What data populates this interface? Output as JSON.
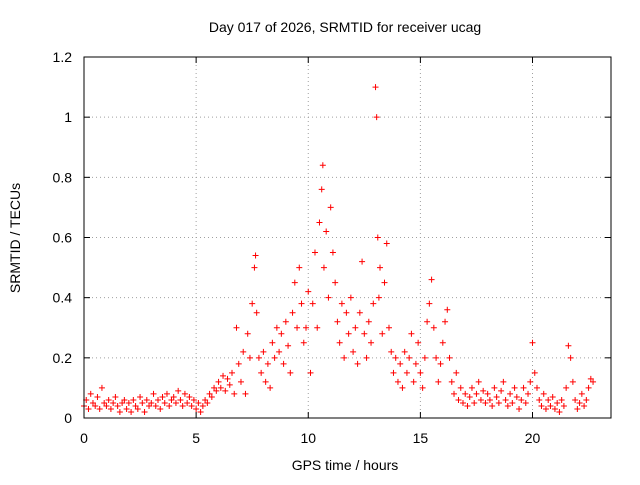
{
  "chart_data": {
    "type": "scatter",
    "title": "Day 017 of 2026, SRMTID for receiver ucag",
    "xlabel": "GPS time / hours",
    "ylabel": "SRMTID / TECUs",
    "xlim": [
      0,
      23.5
    ],
    "ylim": [
      0,
      1.2
    ],
    "xticks": [
      0,
      5,
      10,
      15,
      20
    ],
    "yticks": [
      0,
      0.2,
      0.4,
      0.6,
      0.8,
      1,
      1.2
    ],
    "xtick_labels": [
      "0",
      "5",
      "10",
      "15",
      "20"
    ],
    "ytick_labels": [
      "0",
      "0.2",
      "0.4",
      "0.6",
      "0.8",
      "1",
      "1.2"
    ],
    "grid": true,
    "marker": "+",
    "color": "#ff0000",
    "series": [
      {
        "name": "SRMTID",
        "points": [
          [
            0.0,
            0.04
          ],
          [
            0.1,
            0.06
          ],
          [
            0.2,
            0.03
          ],
          [
            0.3,
            0.08
          ],
          [
            0.4,
            0.05
          ],
          [
            0.5,
            0.04
          ],
          [
            0.6,
            0.07
          ],
          [
            0.7,
            0.03
          ],
          [
            0.8,
            0.1
          ],
          [
            0.9,
            0.05
          ],
          [
            1.0,
            0.04
          ],
          [
            1.1,
            0.06
          ],
          [
            1.2,
            0.03
          ],
          [
            1.3,
            0.05
          ],
          [
            1.4,
            0.07
          ],
          [
            1.5,
            0.04
          ],
          [
            1.6,
            0.02
          ],
          [
            1.7,
            0.05
          ],
          [
            1.8,
            0.06
          ],
          [
            1.9,
            0.03
          ],
          [
            2.0,
            0.05
          ],
          [
            2.1,
            0.02
          ],
          [
            2.2,
            0.06
          ],
          [
            2.3,
            0.04
          ],
          [
            2.4,
            0.03
          ],
          [
            2.5,
            0.07
          ],
          [
            2.6,
            0.05
          ],
          [
            2.7,
            0.02
          ],
          [
            2.8,
            0.06
          ],
          [
            2.9,
            0.04
          ],
          [
            3.0,
            0.05
          ],
          [
            3.1,
            0.08
          ],
          [
            3.2,
            0.04
          ],
          [
            3.3,
            0.06
          ],
          [
            3.4,
            0.03
          ],
          [
            3.5,
            0.07
          ],
          [
            3.6,
            0.05
          ],
          [
            3.7,
            0.08
          ],
          [
            3.8,
            0.04
          ],
          [
            3.9,
            0.06
          ],
          [
            4.0,
            0.07
          ],
          [
            4.1,
            0.05
          ],
          [
            4.2,
            0.09
          ],
          [
            4.3,
            0.06
          ],
          [
            4.4,
            0.04
          ],
          [
            4.5,
            0.08
          ],
          [
            4.6,
            0.05
          ],
          [
            4.7,
            0.07
          ],
          [
            4.8,
            0.04
          ],
          [
            4.9,
            0.06
          ],
          [
            5.0,
            0.03
          ],
          [
            5.1,
            0.05
          ],
          [
            5.2,
            0.02
          ],
          [
            5.3,
            0.04
          ],
          [
            5.4,
            0.06
          ],
          [
            5.5,
            0.05
          ],
          [
            5.6,
            0.08
          ],
          [
            5.7,
            0.07
          ],
          [
            5.8,
            0.1
          ],
          [
            5.9,
            0.09
          ],
          [
            6.0,
            0.12
          ],
          [
            6.1,
            0.1
          ],
          [
            6.2,
            0.14
          ],
          [
            6.3,
            0.09
          ],
          [
            6.4,
            0.13
          ],
          [
            6.5,
            0.11
          ],
          [
            6.6,
            0.15
          ],
          [
            6.7,
            0.08
          ],
          [
            6.8,
            0.3
          ],
          [
            6.9,
            0.18
          ],
          [
            7.0,
            0.12
          ],
          [
            7.1,
            0.22
          ],
          [
            7.2,
            0.08
          ],
          [
            7.3,
            0.28
          ],
          [
            7.4,
            0.2
          ],
          [
            7.5,
            0.38
          ],
          [
            7.6,
            0.5
          ],
          [
            7.65,
            0.54
          ],
          [
            7.7,
            0.35
          ],
          [
            7.8,
            0.2
          ],
          [
            7.9,
            0.15
          ],
          [
            8.0,
            0.22
          ],
          [
            8.1,
            0.12
          ],
          [
            8.2,
            0.18
          ],
          [
            8.3,
            0.1
          ],
          [
            8.4,
            0.25
          ],
          [
            8.5,
            0.2
          ],
          [
            8.6,
            0.3
          ],
          [
            8.7,
            0.22
          ],
          [
            8.8,
            0.28
          ],
          [
            8.9,
            0.18
          ],
          [
            9.0,
            0.32
          ],
          [
            9.1,
            0.24
          ],
          [
            9.2,
            0.15
          ],
          [
            9.3,
            0.35
          ],
          [
            9.4,
            0.45
          ],
          [
            9.5,
            0.3
          ],
          [
            9.6,
            0.5
          ],
          [
            9.7,
            0.38
          ],
          [
            9.8,
            0.25
          ],
          [
            9.9,
            0.3
          ],
          [
            10.0,
            0.42
          ],
          [
            10.1,
            0.15
          ],
          [
            10.2,
            0.38
          ],
          [
            10.3,
            0.55
          ],
          [
            10.4,
            0.3
          ],
          [
            10.5,
            0.65
          ],
          [
            10.6,
            0.76
          ],
          [
            10.65,
            0.84
          ],
          [
            10.7,
            0.5
          ],
          [
            10.8,
            0.62
          ],
          [
            10.9,
            0.4
          ],
          [
            11.0,
            0.7
          ],
          [
            11.1,
            0.55
          ],
          [
            11.2,
            0.45
          ],
          [
            11.3,
            0.32
          ],
          [
            11.4,
            0.25
          ],
          [
            11.5,
            0.38
          ],
          [
            11.6,
            0.2
          ],
          [
            11.7,
            0.35
          ],
          [
            11.8,
            0.28
          ],
          [
            11.9,
            0.4
          ],
          [
            12.0,
            0.22
          ],
          [
            12.1,
            0.3
          ],
          [
            12.2,
            0.18
          ],
          [
            12.3,
            0.35
          ],
          [
            12.4,
            0.52
          ],
          [
            12.5,
            0.28
          ],
          [
            12.6,
            0.2
          ],
          [
            12.7,
            0.32
          ],
          [
            12.8,
            0.25
          ],
          [
            12.9,
            0.38
          ],
          [
            13.0,
            1.1
          ],
          [
            13.05,
            1.0
          ],
          [
            13.1,
            0.6
          ],
          [
            13.15,
            0.4
          ],
          [
            13.2,
            0.5
          ],
          [
            13.3,
            0.28
          ],
          [
            13.4,
            0.45
          ],
          [
            13.5,
            0.58
          ],
          [
            13.6,
            0.3
          ],
          [
            13.7,
            0.22
          ],
          [
            13.8,
            0.15
          ],
          [
            13.9,
            0.2
          ],
          [
            14.0,
            0.12
          ],
          [
            14.1,
            0.18
          ],
          [
            14.2,
            0.1
          ],
          [
            14.3,
            0.22
          ],
          [
            14.4,
            0.15
          ],
          [
            14.5,
            0.2
          ],
          [
            14.6,
            0.28
          ],
          [
            14.7,
            0.12
          ],
          [
            14.8,
            0.18
          ],
          [
            14.9,
            0.25
          ],
          [
            15.0,
            0.15
          ],
          [
            15.1,
            0.1
          ],
          [
            15.2,
            0.2
          ],
          [
            15.3,
            0.32
          ],
          [
            15.4,
            0.38
          ],
          [
            15.5,
            0.46
          ],
          [
            15.6,
            0.3
          ],
          [
            15.7,
            0.2
          ],
          [
            15.8,
            0.12
          ],
          [
            15.9,
            0.18
          ],
          [
            16.0,
            0.25
          ],
          [
            16.1,
            0.32
          ],
          [
            16.2,
            0.36
          ],
          [
            16.3,
            0.2
          ],
          [
            16.4,
            0.12
          ],
          [
            16.5,
            0.08
          ],
          [
            16.6,
            0.15
          ],
          [
            16.7,
            0.06
          ],
          [
            16.8,
            0.1
          ],
          [
            16.9,
            0.05
          ],
          [
            17.0,
            0.08
          ],
          [
            17.1,
            0.04
          ],
          [
            17.2,
            0.07
          ],
          [
            17.3,
            0.1
          ],
          [
            17.4,
            0.05
          ],
          [
            17.5,
            0.08
          ],
          [
            17.6,
            0.12
          ],
          [
            17.7,
            0.06
          ],
          [
            17.8,
            0.09
          ],
          [
            17.9,
            0.05
          ],
          [
            18.0,
            0.08
          ],
          [
            18.1,
            0.06
          ],
          [
            18.2,
            0.04
          ],
          [
            18.3,
            0.1
          ],
          [
            18.4,
            0.07
          ],
          [
            18.5,
            0.05
          ],
          [
            18.6,
            0.09
          ],
          [
            18.7,
            0.12
          ],
          [
            18.8,
            0.06
          ],
          [
            18.9,
            0.04
          ],
          [
            19.0,
            0.08
          ],
          [
            19.1,
            0.05
          ],
          [
            19.2,
            0.1
          ],
          [
            19.3,
            0.07
          ],
          [
            19.4,
            0.03
          ],
          [
            19.5,
            0.06
          ],
          [
            19.6,
            0.1
          ],
          [
            19.7,
            0.05
          ],
          [
            19.8,
            0.08
          ],
          [
            19.9,
            0.12
          ],
          [
            20.0,
            0.25
          ],
          [
            20.1,
            0.15
          ],
          [
            20.2,
            0.1
          ],
          [
            20.3,
            0.06
          ],
          [
            20.4,
            0.04
          ],
          [
            20.5,
            0.08
          ],
          [
            20.6,
            0.03
          ],
          [
            20.7,
            0.06
          ],
          [
            20.8,
            0.04
          ],
          [
            20.9,
            0.07
          ],
          [
            21.0,
            0.03
          ],
          [
            21.1,
            0.05
          ],
          [
            21.2,
            0.02
          ],
          [
            21.3,
            0.06
          ],
          [
            21.4,
            0.04
          ],
          [
            21.5,
            0.1
          ],
          [
            21.6,
            0.24
          ],
          [
            21.7,
            0.2
          ],
          [
            21.8,
            0.12
          ],
          [
            21.9,
            0.06
          ],
          [
            22.0,
            0.03
          ],
          [
            22.1,
            0.05
          ],
          [
            22.2,
            0.08
          ],
          [
            22.3,
            0.04
          ],
          [
            22.4,
            0.06
          ],
          [
            22.5,
            0.1
          ],
          [
            22.6,
            0.13
          ],
          [
            22.7,
            0.12
          ]
        ]
      }
    ]
  }
}
